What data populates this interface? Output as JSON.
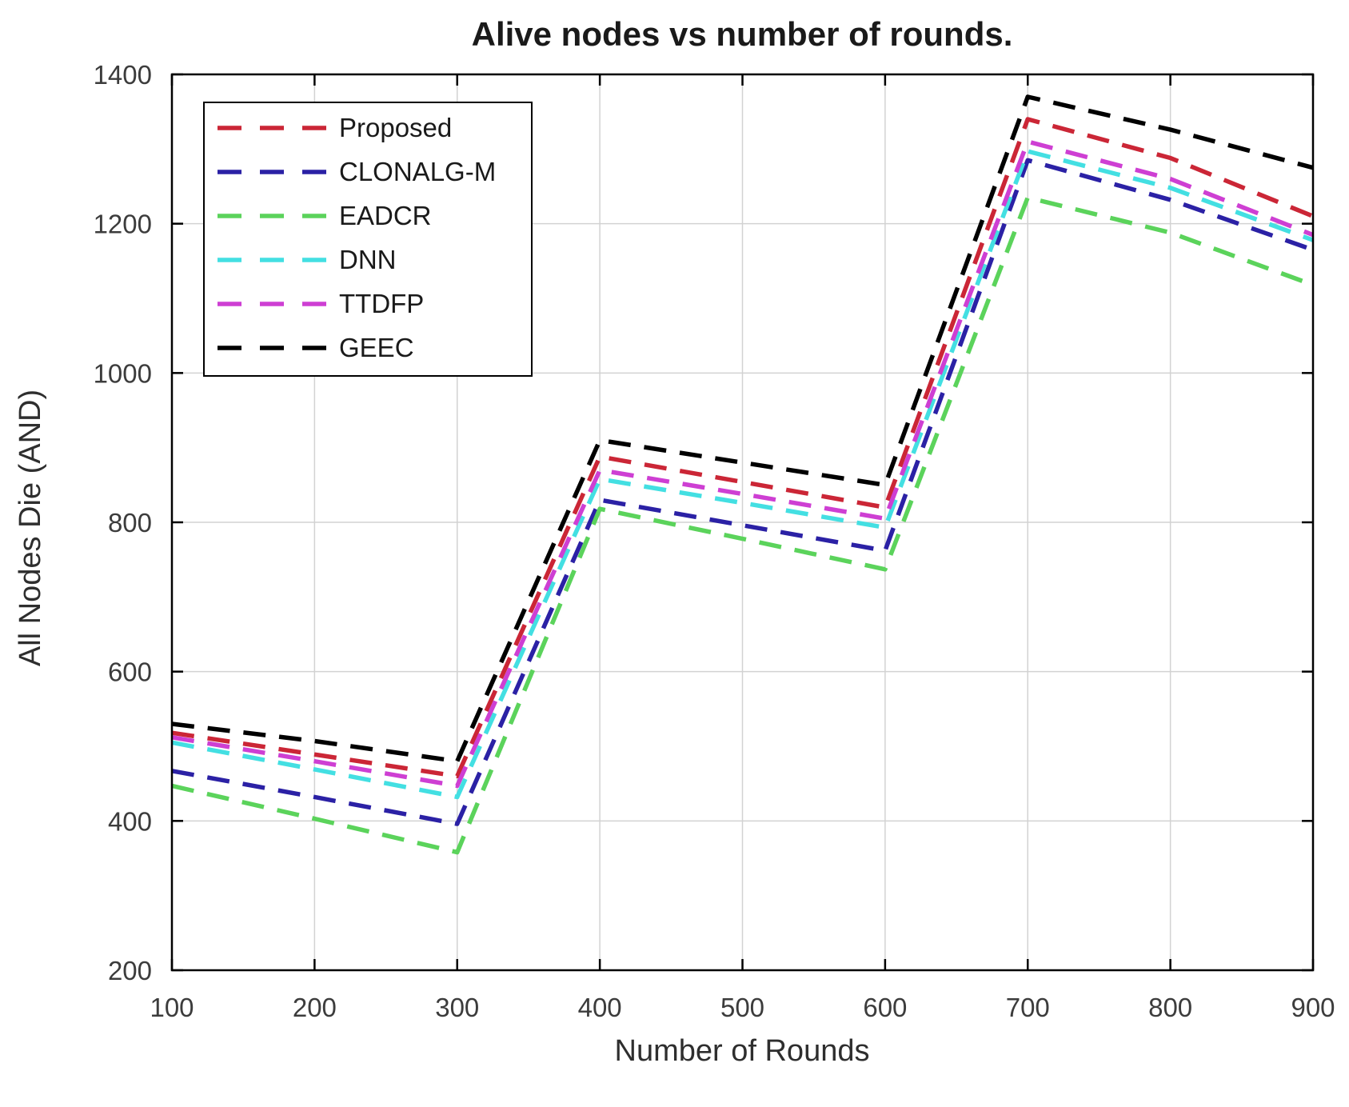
{
  "chart_data": {
    "type": "line",
    "title": "Alive nodes vs number of rounds.",
    "xlabel": "Number of Rounds",
    "ylabel": "All Nodes Die (AND)",
    "xlim": [
      100,
      900
    ],
    "ylim": [
      200,
      1400
    ],
    "x_ticks": [
      100,
      200,
      300,
      400,
      500,
      600,
      700,
      800,
      900
    ],
    "y_ticks": [
      200,
      400,
      600,
      800,
      1000,
      1200,
      1400
    ],
    "grid": true,
    "line_style": "dashed",
    "legend_position": "top-left",
    "x": [
      100,
      200,
      300,
      400,
      500,
      600,
      700,
      800,
      900
    ],
    "series": [
      {
        "name": "Proposed",
        "color": "#cb2636",
        "values": [
          518,
          489,
          460,
          888,
          854,
          820,
          1340,
          1288,
          1210
        ]
      },
      {
        "name": "CLONALG-M",
        "color": "#2b21a5",
        "values": [
          467,
          432,
          396,
          830,
          796,
          762,
          1285,
          1232,
          1165
        ]
      },
      {
        "name": "EADCR",
        "color": "#5bd35b",
        "values": [
          447,
          403,
          358,
          818,
          778,
          737,
          1235,
          1188,
          1118
        ]
      },
      {
        "name": "DNN",
        "color": "#43dfe2",
        "values": [
          505,
          469,
          432,
          858,
          826,
          793,
          1297,
          1248,
          1178
        ]
      },
      {
        "name": "TTDFP",
        "color": "#ce3fd3",
        "values": [
          512,
          480,
          447,
          870,
          838,
          805,
          1310,
          1260,
          1185
        ]
      },
      {
        "name": "GEEC",
        "color": "#000000",
        "values": [
          530,
          507,
          480,
          910,
          880,
          850,
          1370,
          1326,
          1275
        ]
      }
    ]
  },
  "colors": {
    "background": "#ffffff",
    "grid": "#d2d2d2",
    "axis": "#000000",
    "tick_label": "#3c3c3c"
  }
}
